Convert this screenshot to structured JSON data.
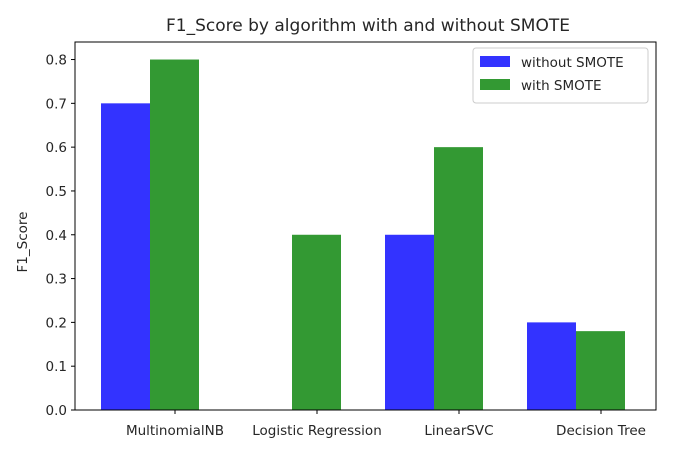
{
  "chart_data": {
    "type": "bar",
    "title": "F1_Score by algorithm with and without SMOTE",
    "xlabel": "",
    "ylabel": "F1_Score",
    "categories": [
      "MultinomialNB",
      "Logistic Regression",
      "LinearSVC",
      "Decision Tree"
    ],
    "series": [
      {
        "name": "without SMOTE",
        "values": [
          0.7,
          0.0,
          0.4,
          0.2
        ],
        "color": "#3333ff"
      },
      {
        "name": "with SMOTE",
        "values": [
          0.8,
          0.4,
          0.6,
          0.18
        ],
        "color": "#339933"
      }
    ],
    "ylim": [
      0,
      0.84
    ],
    "yticks": [
      "0.0",
      "0.1",
      "0.2",
      "0.3",
      "0.4",
      "0.5",
      "0.6",
      "0.7",
      "0.8"
    ],
    "grid": false,
    "legend_position": "top-right"
  }
}
